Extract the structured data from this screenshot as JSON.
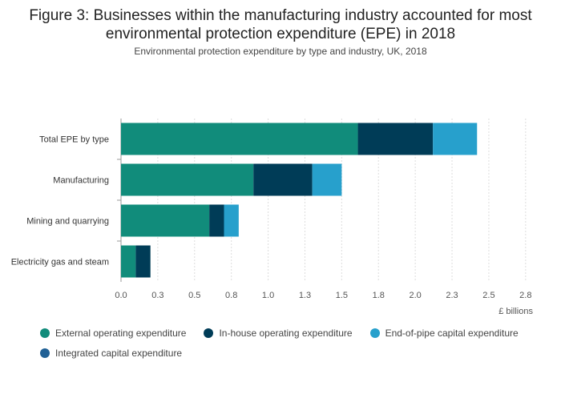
{
  "chart_data": {
    "type": "bar",
    "orientation": "horizontal",
    "stacked": true,
    "title": "Figure 3: Businesses within the manufacturing industry accounted for most environmental protection expenditure (EPE) in 2018",
    "subtitle": "Environmental protection expenditure by type and industry, UK, 2018",
    "categories": [
      "Total EPE by type",
      "Manufacturing",
      "Mining and quarrying",
      "Electricity gas and steam"
    ],
    "series": [
      {
        "name": "External operating expenditure",
        "color": "#118c7b",
        "values": [
          1.61,
          0.9,
          0.6,
          0.1
        ]
      },
      {
        "name": "In-house operating expenditure",
        "color": "#003c57",
        "values": [
          0.51,
          0.4,
          0.1,
          0.1
        ]
      },
      {
        "name": "End-of-pipe capital expenditure",
        "color": "#27a0cc",
        "values": [
          0.3,
          0.2,
          0.1,
          0.0
        ]
      },
      {
        "name": "Integrated capital expenditure",
        "color": "#206095",
        "values": [
          0.0,
          0.0,
          0.0,
          0.0
        ]
      }
    ],
    "xlim": [
      0,
      2.8
    ],
    "xticks": [
      "0.0",
      "0.3",
      "0.5",
      "0.8",
      "1.0",
      "1.3",
      "1.5",
      "1.8",
      "2.0",
      "2.3",
      "2.5",
      "2.8"
    ],
    "xtick_values": [
      0,
      0.25,
      0.5,
      0.75,
      1.0,
      1.25,
      1.5,
      1.75,
      2.0,
      2.25,
      2.5,
      2.75
    ],
    "xlabel": "£ billions",
    "ylabel": "",
    "grid": true,
    "legend_position": "bottom"
  }
}
